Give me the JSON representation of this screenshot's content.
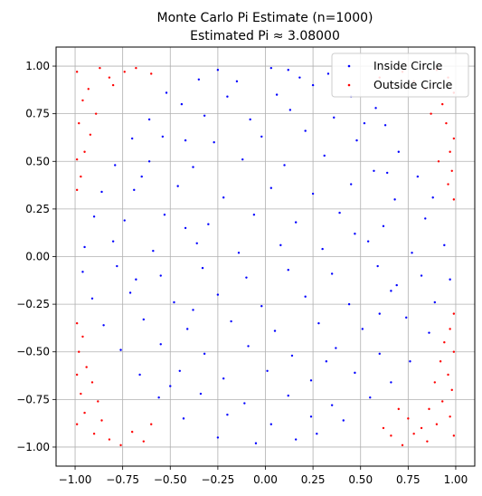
{
  "chart_data": {
    "type": "scatter",
    "title_line1": "Monte Carlo Pi Estimate (n=1000)",
    "title_line2": "Estimated Pi ≈ 3.08000",
    "xlim": [
      -1.1,
      1.1
    ],
    "ylim": [
      -1.1,
      1.1
    ],
    "grid": true,
    "legend_position": "upper right",
    "xticks": [
      -1.0,
      -0.75,
      -0.5,
      -0.25,
      0.0,
      0.25,
      0.5,
      0.75,
      1.0
    ],
    "xtick_labels": [
      "−1.00",
      "−0.75",
      "−0.50",
      "−0.25",
      "0.00",
      "0.25",
      "0.50",
      "0.75",
      "1.00"
    ],
    "yticks": [
      -1.0,
      -0.75,
      -0.5,
      -0.25,
      0.0,
      0.25,
      0.5,
      0.75,
      1.0
    ],
    "ytick_labels": [
      "−1.00",
      "−0.75",
      "−0.50",
      "−0.25",
      "0.00",
      "0.25",
      "0.50",
      "0.75",
      "1.00"
    ],
    "series": [
      {
        "name": "Inside Circle",
        "color": "#0000ff",
        "points": [
          [
            -0.25,
            0.98
          ],
          [
            0.03,
            0.99
          ],
          [
            0.12,
            0.98
          ],
          [
            0.33,
            0.96
          ],
          [
            -0.35,
            0.93
          ],
          [
            0.18,
            0.94
          ],
          [
            -0.52,
            0.86
          ],
          [
            -0.44,
            0.8
          ],
          [
            -0.2,
            0.84
          ],
          [
            0.06,
            0.85
          ],
          [
            0.25,
            0.9
          ],
          [
            0.45,
            0.84
          ],
          [
            0.58,
            0.78
          ],
          [
            -0.61,
            0.72
          ],
          [
            -0.32,
            0.74
          ],
          [
            -0.08,
            0.72
          ],
          [
            0.13,
            0.77
          ],
          [
            0.36,
            0.73
          ],
          [
            0.63,
            0.69
          ],
          [
            -0.7,
            0.62
          ],
          [
            -0.54,
            0.63
          ],
          [
            -0.27,
            0.6
          ],
          [
            -0.02,
            0.63
          ],
          [
            0.21,
            0.66
          ],
          [
            0.48,
            0.61
          ],
          [
            0.7,
            0.55
          ],
          [
            -0.79,
            0.48
          ],
          [
            -0.61,
            0.5
          ],
          [
            -0.38,
            0.47
          ],
          [
            -0.12,
            0.51
          ],
          [
            0.1,
            0.48
          ],
          [
            0.31,
            0.53
          ],
          [
            0.57,
            0.45
          ],
          [
            0.8,
            0.42
          ],
          [
            -0.86,
            0.34
          ],
          [
            -0.69,
            0.35
          ],
          [
            -0.46,
            0.37
          ],
          [
            -0.22,
            0.31
          ],
          [
            0.03,
            0.36
          ],
          [
            0.25,
            0.33
          ],
          [
            0.45,
            0.38
          ],
          [
            0.68,
            0.3
          ],
          [
            0.88,
            0.31
          ],
          [
            -0.9,
            0.21
          ],
          [
            -0.74,
            0.19
          ],
          [
            -0.53,
            0.22
          ],
          [
            -0.3,
            0.17
          ],
          [
            -0.06,
            0.22
          ],
          [
            0.16,
            0.18
          ],
          [
            0.39,
            0.23
          ],
          [
            0.62,
            0.16
          ],
          [
            0.84,
            0.2
          ],
          [
            -0.95,
            0.05
          ],
          [
            -0.8,
            0.08
          ],
          [
            -0.59,
            0.03
          ],
          [
            -0.36,
            0.07
          ],
          [
            -0.14,
            0.02
          ],
          [
            0.08,
            0.06
          ],
          [
            0.3,
            0.04
          ],
          [
            0.54,
            0.08
          ],
          [
            0.77,
            0.02
          ],
          [
            0.94,
            0.06
          ],
          [
            -0.96,
            -0.08
          ],
          [
            -0.78,
            -0.05
          ],
          [
            -0.55,
            -0.1
          ],
          [
            -0.33,
            -0.06
          ],
          [
            -0.1,
            -0.11
          ],
          [
            0.12,
            -0.07
          ],
          [
            0.35,
            -0.09
          ],
          [
            0.59,
            -0.05
          ],
          [
            0.82,
            -0.1
          ],
          [
            0.97,
            -0.12
          ],
          [
            -0.91,
            -0.22
          ],
          [
            -0.71,
            -0.19
          ],
          [
            -0.48,
            -0.24
          ],
          [
            -0.25,
            -0.2
          ],
          [
            -0.02,
            -0.26
          ],
          [
            0.21,
            -0.21
          ],
          [
            0.44,
            -0.25
          ],
          [
            0.66,
            -0.18
          ],
          [
            0.89,
            -0.24
          ],
          [
            -0.85,
            -0.36
          ],
          [
            -0.64,
            -0.33
          ],
          [
            -0.41,
            -0.38
          ],
          [
            -0.18,
            -0.34
          ],
          [
            0.05,
            -0.39
          ],
          [
            0.28,
            -0.35
          ],
          [
            0.51,
            -0.38
          ],
          [
            0.74,
            -0.32
          ],
          [
            0.86,
            -0.4
          ],
          [
            -0.76,
            -0.49
          ],
          [
            -0.55,
            -0.46
          ],
          [
            -0.32,
            -0.51
          ],
          [
            -0.09,
            -0.47
          ],
          [
            0.14,
            -0.52
          ],
          [
            0.37,
            -0.48
          ],
          [
            0.6,
            -0.51
          ],
          [
            0.76,
            -0.55
          ],
          [
            -0.66,
            -0.62
          ],
          [
            -0.45,
            -0.6
          ],
          [
            -0.22,
            -0.64
          ],
          [
            0.01,
            -0.6
          ],
          [
            0.24,
            -0.65
          ],
          [
            0.47,
            -0.61
          ],
          [
            0.66,
            -0.66
          ],
          [
            -0.56,
            -0.74
          ],
          [
            -0.34,
            -0.72
          ],
          [
            -0.11,
            -0.77
          ],
          [
            0.12,
            -0.73
          ],
          [
            0.35,
            -0.78
          ],
          [
            0.55,
            -0.74
          ],
          [
            -0.43,
            -0.85
          ],
          [
            -0.2,
            -0.83
          ],
          [
            0.03,
            -0.88
          ],
          [
            0.24,
            -0.84
          ],
          [
            0.41,
            -0.86
          ],
          [
            -0.25,
            -0.95
          ],
          [
            -0.05,
            -0.98
          ],
          [
            0.16,
            -0.96
          ],
          [
            0.27,
            -0.93
          ],
          [
            -0.15,
            0.92
          ],
          [
            -0.42,
            0.61
          ],
          [
            0.52,
            0.7
          ],
          [
            -0.65,
            0.42
          ],
          [
            0.64,
            0.44
          ],
          [
            -0.42,
            0.15
          ],
          [
            0.47,
            0.12
          ],
          [
            -0.68,
            -0.12
          ],
          [
            0.69,
            -0.15
          ],
          [
            -0.38,
            -0.28
          ],
          [
            0.32,
            -0.55
          ],
          [
            -0.5,
            -0.68
          ],
          [
            0.6,
            -0.3
          ]
        ]
      },
      {
        "name": "Outside Circle",
        "color": "#ff0000",
        "points": [
          [
            -0.99,
            0.97
          ],
          [
            -0.93,
            0.88
          ],
          [
            -0.87,
            0.99
          ],
          [
            -0.82,
            0.94
          ],
          [
            -0.96,
            0.82
          ],
          [
            -0.89,
            0.75
          ],
          [
            -0.8,
            0.9
          ],
          [
            -0.74,
            0.97
          ],
          [
            -0.68,
            0.99
          ],
          [
            -0.6,
            0.96
          ],
          [
            -0.98,
            0.7
          ],
          [
            -0.92,
            0.64
          ],
          [
            -0.95,
            0.55
          ],
          [
            -0.99,
            0.51
          ],
          [
            -0.97,
            0.42
          ],
          [
            -0.99,
            0.35
          ],
          [
            0.72,
            0.97
          ],
          [
            0.78,
            0.92
          ],
          [
            0.84,
            0.88
          ],
          [
            0.9,
            0.98
          ],
          [
            0.96,
            0.94
          ],
          [
            0.99,
            0.86
          ],
          [
            0.93,
            0.8
          ],
          [
            0.87,
            0.75
          ],
          [
            0.95,
            0.7
          ],
          [
            0.99,
            0.62
          ],
          [
            0.97,
            0.55
          ],
          [
            0.91,
            0.5
          ],
          [
            0.98,
            0.45
          ],
          [
            0.96,
            0.38
          ],
          [
            0.99,
            0.3
          ],
          [
            0.6,
            0.94
          ],
          [
            0.66,
            0.9
          ],
          [
            -0.99,
            -0.35
          ],
          [
            -0.96,
            -0.42
          ],
          [
            -0.98,
            -0.5
          ],
          [
            -0.94,
            -0.58
          ],
          [
            -0.99,
            -0.62
          ],
          [
            -0.91,
            -0.66
          ],
          [
            -0.97,
            -0.72
          ],
          [
            -0.88,
            -0.76
          ],
          [
            -0.95,
            -0.82
          ],
          [
            -0.99,
            -0.88
          ],
          [
            -0.86,
            -0.86
          ],
          [
            -0.9,
            -0.93
          ],
          [
            -0.82,
            -0.96
          ],
          [
            -0.76,
            -0.99
          ],
          [
            -0.7,
            -0.92
          ],
          [
            -0.64,
            -0.97
          ],
          [
            -0.6,
            -0.88
          ],
          [
            0.99,
            -0.3
          ],
          [
            0.97,
            -0.38
          ],
          [
            0.94,
            -0.45
          ],
          [
            0.99,
            -0.5
          ],
          [
            0.92,
            -0.55
          ],
          [
            0.96,
            -0.62
          ],
          [
            0.89,
            -0.66
          ],
          [
            0.98,
            -0.7
          ],
          [
            0.93,
            -0.76
          ],
          [
            0.86,
            -0.8
          ],
          [
            0.97,
            -0.84
          ],
          [
            0.9,
            -0.88
          ],
          [
            0.82,
            -0.9
          ],
          [
            0.99,
            -0.94
          ],
          [
            0.85,
            -0.97
          ],
          [
            0.78,
            -0.93
          ],
          [
            0.72,
            -0.99
          ],
          [
            0.66,
            -0.94
          ],
          [
            0.62,
            -0.9
          ],
          [
            0.75,
            -0.85
          ],
          [
            0.7,
            -0.8
          ]
        ]
      }
    ]
  }
}
